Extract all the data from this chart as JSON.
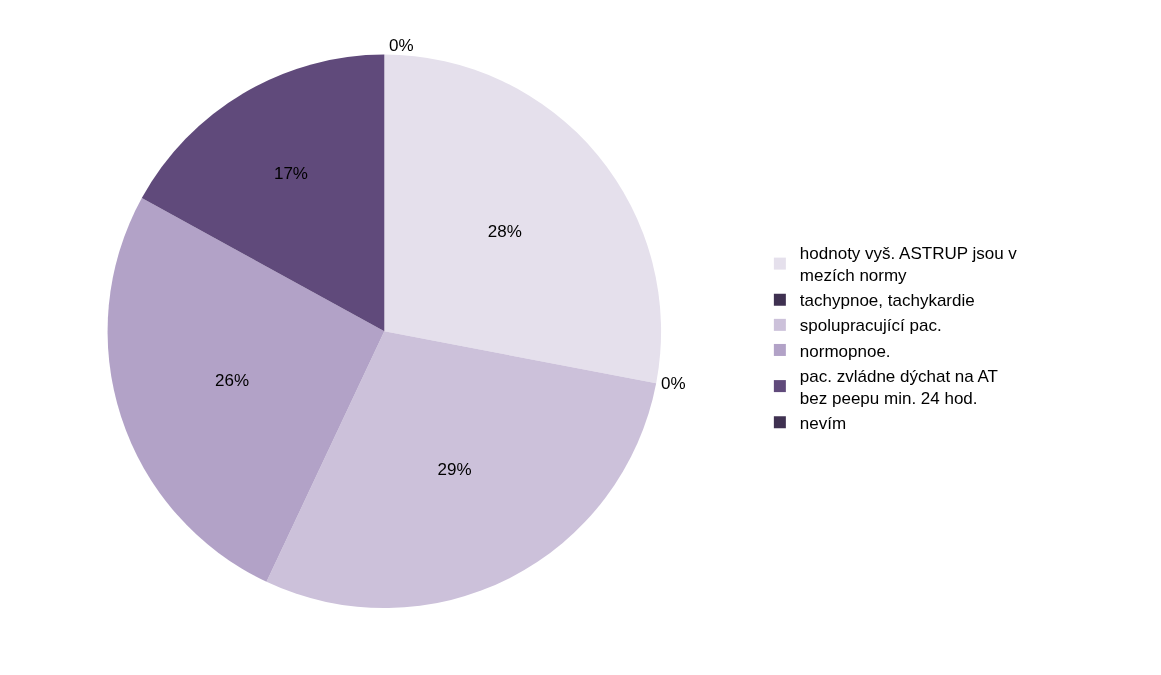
{
  "chart_data": {
    "type": "pie",
    "categories": [
      "hodnoty vyš. ASTRUP jsou v mezích normy",
      "tachypnoe, tachykardie",
      "spolupracující pac.",
      "normopnoe.",
      "pac. zvládne dýchat na AT bez peepu min. 24 hod.",
      "nevím"
    ],
    "values": [
      28,
      0,
      29,
      26,
      17,
      0
    ],
    "value_labels": [
      "28%",
      "0%",
      "29%",
      "26%",
      "17%",
      "0%"
    ],
    "colors": [
      "#e5e0ec",
      "#3f3151",
      "#ccc1da",
      "#b2a2c7",
      "#604a7b",
      "#3f3151"
    ],
    "legend": "right"
  }
}
